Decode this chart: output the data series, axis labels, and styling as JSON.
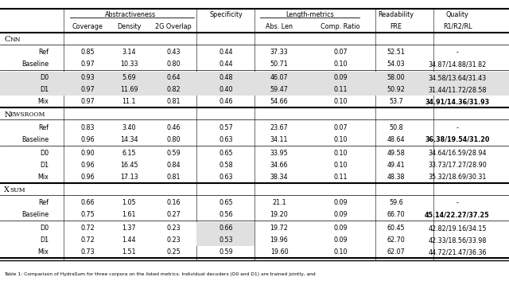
{
  "sections": [
    {
      "name": "CNN",
      "rows": [
        {
          "label": "Ref",
          "values": [
            "0.85",
            "3.14",
            "0.43",
            "0.44",
            "37.33",
            "0.07",
            "52.51",
            "-"
          ],
          "bold_quality": false,
          "shade": false
        },
        {
          "label": "Baseline",
          "values": [
            "0.97",
            "10.33",
            "0.80",
            "0.44",
            "50.71",
            "0.10",
            "54.03",
            "34.87/14.88/31.82"
          ],
          "bold_quality": false,
          "shade": false
        },
        {
          "label": "D0",
          "values": [
            "0.93",
            "5.69",
            "0.64",
            "0.48",
            "46.07",
            "0.09",
            "58.00",
            "34.58/13.64/31.43"
          ],
          "bold_quality": false,
          "shade": true
        },
        {
          "label": "D1",
          "values": [
            "0.97",
            "11.69",
            "0.82",
            "0.40",
            "59.47",
            "0.11",
            "50.92",
            "31.44/11.72/28.58"
          ],
          "bold_quality": false,
          "shade": true
        },
        {
          "label": "Mix",
          "values": [
            "0.97",
            "11.1",
            "0.81",
            "0.46",
            "54.66",
            "0.10",
            "53.7",
            "34.91/14.36/31.93"
          ],
          "bold_quality": true,
          "shade": false
        }
      ]
    },
    {
      "name": "Newsroom",
      "rows": [
        {
          "label": "Ref",
          "values": [
            "0.83",
            "3.40",
            "0.46",
            "0.57",
            "23.67",
            "0.07",
            "50.8",
            "-"
          ],
          "bold_quality": false,
          "shade": false
        },
        {
          "label": "Baseline",
          "values": [
            "0.96",
            "14.34",
            "0.80",
            "0.63",
            "34.11",
            "0.10",
            "48.64",
            "36.38/19.54/31.20"
          ],
          "bold_quality": true,
          "shade": false
        },
        {
          "label": "D0",
          "values": [
            "0.90",
            "6.15",
            "0.59",
            "0.65",
            "33.95",
            "0.10",
            "49.58",
            "34.64/16.59/28.94"
          ],
          "bold_quality": false,
          "shade": false
        },
        {
          "label": "D1",
          "values": [
            "0.96",
            "16.45",
            "0.84",
            "0.58",
            "34.66",
            "0.10",
            "49.41",
            "33.73/17.27/28.90"
          ],
          "bold_quality": false,
          "shade": false
        },
        {
          "label": "Mix",
          "values": [
            "0.96",
            "17.13",
            "0.81",
            "0.63",
            "38.34",
            "0.11",
            "48.38",
            "35.32/18.69/30.31"
          ],
          "bold_quality": false,
          "shade": false
        }
      ]
    },
    {
      "name": "Xsum",
      "rows": [
        {
          "label": "Ref",
          "values": [
            "0.66",
            "1.05",
            "0.16",
            "0.65",
            "21.1",
            "0.09",
            "59.6",
            "-"
          ],
          "bold_quality": false,
          "shade": false,
          "shade_spec_only": false
        },
        {
          "label": "Baseline",
          "values": [
            "0.75",
            "1.61",
            "0.27",
            "0.56",
            "19.20",
            "0.09",
            "66.70",
            "45.14/22.27/37.25"
          ],
          "bold_quality": true,
          "shade": false,
          "shade_spec_only": false
        },
        {
          "label": "D0",
          "values": [
            "0.72",
            "1.37",
            "0.23",
            "0.66",
            "19.72",
            "0.09",
            "60.45",
            "42.82/19.16/34.15"
          ],
          "bold_quality": false,
          "shade": false,
          "shade_spec_only": true
        },
        {
          "label": "D1",
          "values": [
            "0.72",
            "1.44",
            "0.23",
            "0.53",
            "19.96",
            "0.09",
            "62.70",
            "42.33/18.56/33.98"
          ],
          "bold_quality": false,
          "shade": false,
          "shade_spec_only": true
        },
        {
          "label": "Mix",
          "values": [
            "0.73",
            "1.51",
            "0.25",
            "0.59",
            "19.60",
            "0.10",
            "62.07",
            "44.72/21.47/36.36"
          ],
          "bold_quality": false,
          "shade": false,
          "shade_spec_only": false
        }
      ]
    }
  ],
  "figsize": [
    6.4,
    3.63
  ],
  "dpi": 100,
  "font_size": 5.8,
  "shade_color": "#e0e0e0",
  "caption": "Table 1: Comparison of HydraSum for three corpora on the listed metrics. Individual decoders (D0 and D1) are trained jointly, and"
}
